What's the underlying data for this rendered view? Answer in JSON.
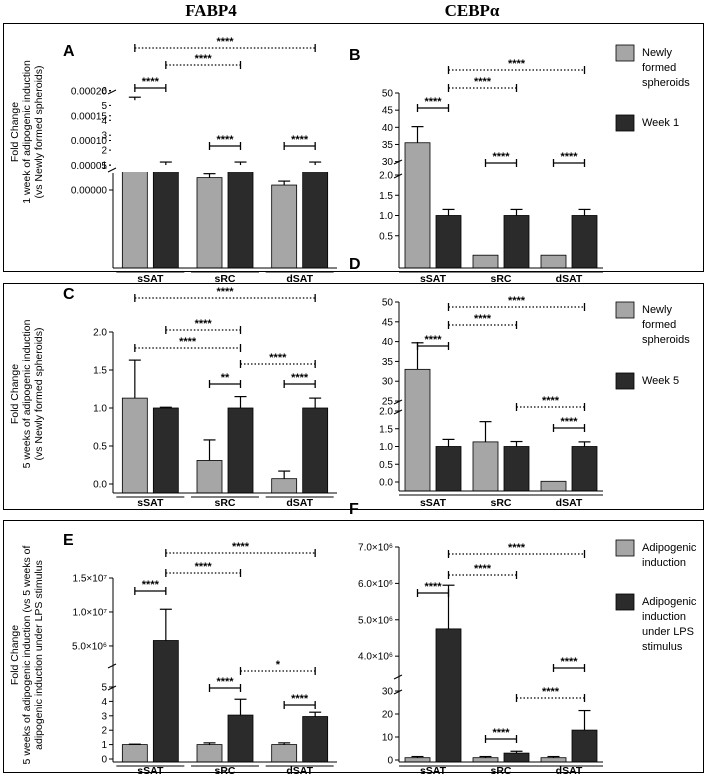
{
  "headers": {
    "left": "FABP4",
    "right": "CEBPα"
  },
  "legends": [
    {
      "items": [
        {
          "label_lines": [
            "Newly",
            "formed",
            "spheroids"
          ],
          "color": "#a6a6a6"
        },
        {
          "label_lines": [
            "Week 1"
          ],
          "color": "#2b2b2b"
        }
      ]
    },
    {
      "items": [
        {
          "label_lines": [
            "Newly",
            "formed",
            "spheroids"
          ],
          "color": "#a6a6a6"
        },
        {
          "label_lines": [
            "Week 5"
          ],
          "color": "#2b2b2b"
        }
      ]
    },
    {
      "items": [
        {
          "label_lines": [
            "Adipogenic",
            "induction"
          ],
          "color": "#a6a6a6"
        },
        {
          "label_lines": [
            "Adipogenic",
            "induction",
            "under LPS",
            "stimulus"
          ],
          "color": "#2b2b2b"
        }
      ]
    }
  ],
  "ylabels": [
    [
      "Fold Change",
      "1 week of adipogenic induction",
      "(vs Newly formed spheroids)"
    ],
    [
      "Fold Change",
      "5 weeks of adipogenic induction",
      "(vs Newly formed spheroids)"
    ],
    [
      "Fold Change",
      "5 weeks of adipogenic induction (vs 5 weeks of",
      "adipogenic induction under LPS stimulus"
    ]
  ],
  "chart_data": [
    {
      "letter": "A",
      "type": "bar",
      "gene": "FABP4",
      "comparison": "Newly formed spheroids vs Week 1",
      "categories": [
        "sSAT",
        "sRC",
        "dSAT"
      ],
      "series": [
        {
          "name": "Newly formed spheroids",
          "values": [
            5.35,
            2.5e-05,
            1e-05
          ],
          "errors": [
            0.2,
            8e-06,
            8e-06
          ]
        },
        {
          "name": "Week 1",
          "values": [
            1.0,
            1.0,
            1.0
          ],
          "errors": [
            0.2,
            0.2,
            0.2
          ]
        }
      ],
      "y_axis": "broken",
      "upper_ticks": [
        "1",
        "2",
        "3",
        "4",
        "5",
        "6"
      ],
      "lower_ticks": [
        "0.00000",
        "0.00005",
        "0.00010",
        "0.00015",
        "0.00020"
      ],
      "significance": [
        "****",
        "****",
        "****",
        "****",
        "****",
        "****"
      ]
    },
    {
      "letter": "B",
      "type": "bar",
      "gene": "CEBPα",
      "comparison": "Newly formed spheroids vs Week 1",
      "categories": [
        "sSAT",
        "sRC",
        "dSAT"
      ],
      "series": [
        {
          "name": "Newly formed spheroids",
          "values": [
            35.5,
            0.02,
            0.02
          ],
          "errors": [
            4.7,
            0.0,
            0.0
          ]
        },
        {
          "name": "Week 1",
          "values": [
            1.0,
            1.0,
            1.0
          ],
          "errors": [
            0.15,
            0.15,
            0.15
          ]
        }
      ],
      "y_axis": "broken",
      "upper_ticks": [
        "30",
        "35",
        "40",
        "45",
        "50"
      ],
      "lower_ticks": [
        "0.5",
        "1.0",
        "1.5",
        "2.0"
      ],
      "significance": [
        "****",
        "****",
        "****",
        "****",
        "****"
      ]
    },
    {
      "letter": "C",
      "type": "bar",
      "gene": "FABP4",
      "comparison": "Newly formed spheroids vs Week 5",
      "categories": [
        "sSAT",
        "sRC",
        "dSAT"
      ],
      "series": [
        {
          "name": "Newly formed spheroids",
          "values": [
            1.13,
            0.31,
            0.07
          ],
          "errors": [
            0.5,
            0.27,
            0.1
          ]
        },
        {
          "name": "Week 5",
          "values": [
            1.0,
            1.0,
            1.0
          ],
          "errors": [
            0.01,
            0.15,
            0.13
          ]
        }
      ],
      "ylim": [
        0,
        2.0
      ],
      "ticks": [
        "0.0",
        "0.5",
        "1.0",
        "1.5",
        "2.0"
      ],
      "significance": [
        "****",
        "****",
        "****",
        "**",
        "****",
        "****"
      ]
    },
    {
      "letter": "D",
      "type": "bar",
      "gene": "CEBPα",
      "comparison": "Newly formed spheroids vs Week 5",
      "categories": [
        "sSAT",
        "sRC",
        "dSAT"
      ],
      "series": [
        {
          "name": "Newly formed spheroids",
          "values": [
            33.0,
            1.13,
            0.02
          ],
          "errors": [
            6.7,
            0.57,
            0.0
          ]
        },
        {
          "name": "Week 5",
          "values": [
            1.0,
            1.0,
            1.0
          ],
          "errors": [
            0.2,
            0.14,
            0.13
          ]
        }
      ],
      "y_axis": "broken",
      "upper_ticks": [
        "25",
        "30",
        "35",
        "40",
        "45",
        "50"
      ],
      "lower_ticks": [
        "0.0",
        "0.5",
        "1.0",
        "1.5",
        "2.0"
      ],
      "significance": [
        "****",
        "****",
        "****",
        "****",
        "****",
        "****"
      ]
    },
    {
      "letter": "E",
      "type": "bar",
      "gene": "FABP4",
      "comparison": "Adipogenic induction vs Adipogenic induction under LPS stimulus",
      "categories": [
        "sSAT",
        "sRC",
        "dSAT"
      ],
      "series": [
        {
          "name": "Adipogenic induction",
          "values": [
            1.0,
            1.0,
            1.0
          ],
          "errors": [
            0.03,
            0.12,
            0.12
          ]
        },
        {
          "name": "Adipogenic induction under LPS stimulus",
          "values": [
            5800000,
            3.05,
            2.95
          ],
          "errors": [
            4600000,
            1.1,
            0.3
          ]
        }
      ],
      "y_axis": "broken",
      "upper_ticks": [
        "5.0×10^6",
        "1.0×10^7",
        "1.5×10^7"
      ],
      "lower_ticks": [
        "0",
        "1",
        "2",
        "3",
        "4",
        "5"
      ],
      "significance": [
        "****",
        "****",
        "****",
        "****",
        "*",
        "****"
      ]
    },
    {
      "letter": "F",
      "type": "bar",
      "gene": "CEBPα",
      "comparison": "Adipogenic induction vs Adipogenic induction under LPS stimulus",
      "categories": [
        "sSAT",
        "sRC",
        "dSAT"
      ],
      "series": [
        {
          "name": "Adipogenic induction",
          "values": [
            1.0,
            1.0,
            1.0
          ],
          "errors": [
            0.5,
            0.5,
            0.5
          ]
        },
        {
          "name": "Adipogenic induction under LPS stimulus",
          "values": [
            4750000,
            3.0,
            13.0
          ],
          "errors": [
            1200000,
            0.8,
            8.5
          ]
        }
      ],
      "y_axis": "broken",
      "upper_ticks": [
        "4.0×10^6",
        "5.0×10^6",
        "6.0×10^6",
        "7.0×10^6"
      ],
      "lower_ticks": [
        "0",
        "10",
        "20",
        "30"
      ],
      "significance": [
        "****",
        "****",
        "****",
        "****",
        "****",
        "****"
      ]
    }
  ]
}
